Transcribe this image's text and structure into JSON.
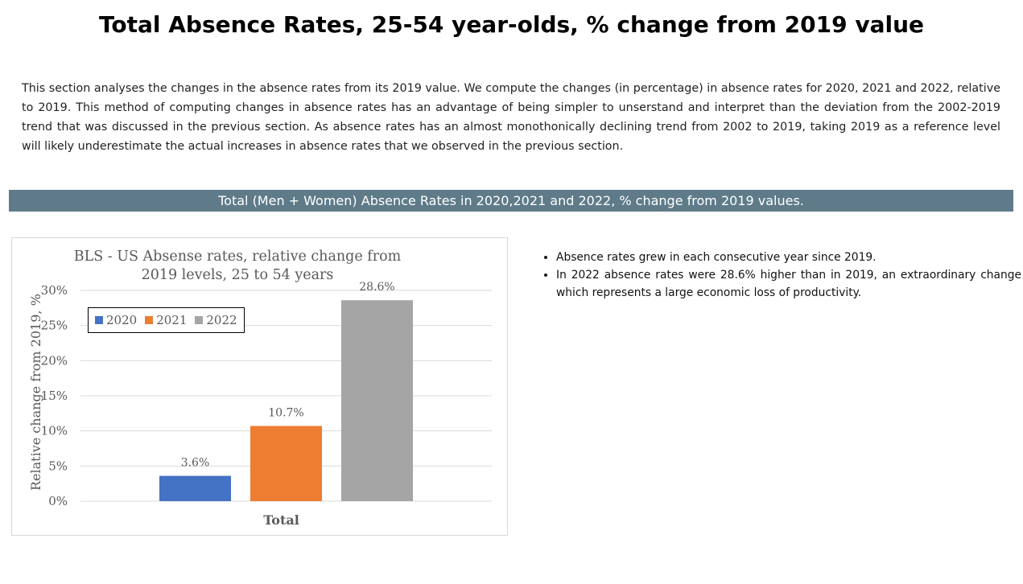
{
  "page": {
    "title": "Total Absence Rates, 25-54 year-olds, % change from 2019 value",
    "intro": "This section analyses the changes in the absence rates from its 2019 value. We compute the changes (in percentage) in absence rates for 2020, 2021 and 2022, relative to 2019. This method of computing changes in absence rates has an advantage of being simpler to unserstand and interpret than the deviation from the 2002-2019 trend that was discussed in the previous section. As absence rates has an almost monothonically declining trend from 2002 to 2019, taking 2019 as a reference level will likely underestimate the actual increases in absence rates that we observed in the previous section.",
    "banner": "Total (Men + Women) Absence Rates in 2020,2021 and 2022, % change from 2019 values.",
    "bullets": [
      "Absence rates grew in each consecutive year since 2019.",
      "In 2022 absence rates were 28.6% higher than in 2019, an extraordinary change which represents a large economic loss of productivity."
    ]
  },
  "chart_data": {
    "type": "bar",
    "title": "BLS - US Absense rates, relative change from 2019 levels, 25 to 54 years",
    "xlabel": "Total",
    "ylabel": "Relative change from 2019, %",
    "categories": [
      "Total"
    ],
    "series": [
      {
        "name": "2020",
        "values": [
          3.6
        ],
        "label": "3.6%",
        "color": "#4472c4"
      },
      {
        "name": "2021",
        "values": [
          10.7
        ],
        "label": "10.7%",
        "color": "#ed7d31"
      },
      {
        "name": "2022",
        "values": [
          28.6
        ],
        "label": "28.6%",
        "color": "#a5a5a5"
      }
    ],
    "ylim": [
      0,
      30
    ],
    "yticks": [
      0,
      5,
      10,
      15,
      20,
      25,
      30
    ],
    "ytick_labels": [
      "0%",
      "5%",
      "10%",
      "15%",
      "20%",
      "25%",
      "30%"
    ],
    "grid": true,
    "legend": "top-left"
  }
}
